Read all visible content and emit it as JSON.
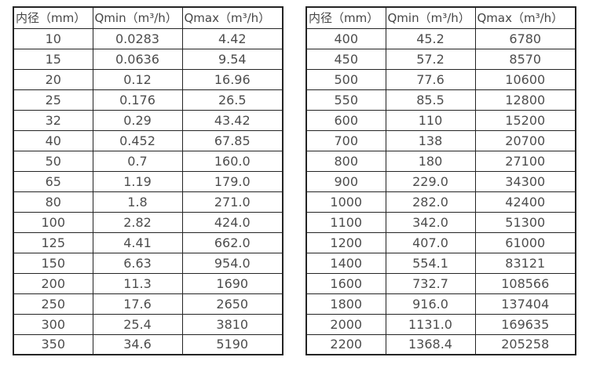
{
  "page": {
    "background": "#ffffff",
    "text_color": "#4d4d4d",
    "border_color": "#242424"
  },
  "tables": [
    {
      "name": "flow-rate-table-small-diameters",
      "headers": [
        "内径（mm）",
        "Qmin（m³/h）",
        "Qmax（m³/h）"
      ],
      "rows": [
        [
          "10",
          "0.0283",
          "4.42"
        ],
        [
          "15",
          "0.0636",
          "9.54"
        ],
        [
          "20",
          "0.12",
          "16.96"
        ],
        [
          "25",
          "0.176",
          "26.5"
        ],
        [
          "32",
          "0.29",
          "43.42"
        ],
        [
          "40",
          "0.452",
          "67.85"
        ],
        [
          "50",
          "0.7",
          "160.0"
        ],
        [
          "65",
          "1.19",
          "179.0"
        ],
        [
          "80",
          "1.8",
          "271.0"
        ],
        [
          "100",
          "2.82",
          "424.0"
        ],
        [
          "125",
          "4.41",
          "662.0"
        ],
        [
          "150",
          "6.63",
          "954.0"
        ],
        [
          "200",
          "11.3",
          "1690"
        ],
        [
          "250",
          "17.6",
          "2650"
        ],
        [
          "300",
          "25.4",
          "3810"
        ],
        [
          "350",
          "34.6",
          "5190"
        ]
      ]
    },
    {
      "name": "flow-rate-table-large-diameters",
      "headers": [
        "内径（mm）",
        "Qmin（m³/h）",
        "Qmax（m³/h）"
      ],
      "rows": [
        [
          "400",
          "45.2",
          "6780"
        ],
        [
          "450",
          "57.2",
          "8570"
        ],
        [
          "500",
          "77.6",
          "10600"
        ],
        [
          "550",
          "85.5",
          "12800"
        ],
        [
          "600",
          "110",
          "15200"
        ],
        [
          "700",
          "138",
          "20700"
        ],
        [
          "800",
          "180",
          "27100"
        ],
        [
          "900",
          "229.0",
          "34300"
        ],
        [
          "1000",
          "282.0",
          "42400"
        ],
        [
          "1100",
          "342.0",
          "51300"
        ],
        [
          "1200",
          "407.0",
          "61000"
        ],
        [
          "1400",
          "554.1",
          "83121"
        ],
        [
          "1600",
          "732.7",
          "108566"
        ],
        [
          "1800",
          "916.0",
          "137404"
        ],
        [
          "2000",
          "1131.0",
          "169635"
        ],
        [
          "2200",
          "1368.4",
          "205258"
        ]
      ]
    }
  ]
}
